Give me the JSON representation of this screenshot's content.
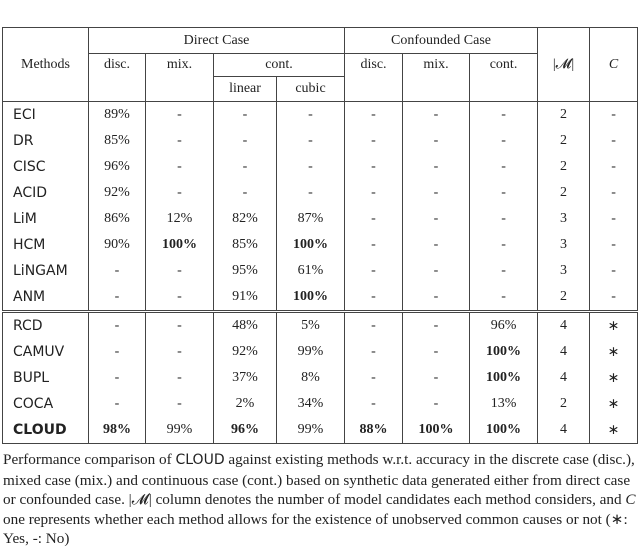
{
  "table": {
    "header": {
      "methods": "Methods",
      "direct_case": "Direct Case",
      "confounded_case": "Confounded Case",
      "m_col": "|𝓜|",
      "c_col": "C",
      "disc": "disc.",
      "mix": "mix.",
      "cont": "cont.",
      "linear": "linear",
      "cubic": "cubic",
      "c_disc": "disc.",
      "c_mix": "mix.",
      "c_cont": "cont."
    },
    "groups": [
      [
        {
          "method": "ECI",
          "values": [
            "89%",
            "-",
            "-",
            "-",
            "-",
            "-",
            "-",
            "2",
            "-"
          ],
          "bold": []
        },
        {
          "method": "DR",
          "values": [
            "85%",
            "-",
            "-",
            "-",
            "-",
            "-",
            "-",
            "2",
            "-"
          ],
          "bold": []
        },
        {
          "method": "CISC",
          "values": [
            "96%",
            "-",
            "-",
            "-",
            "-",
            "-",
            "-",
            "2",
            "-"
          ],
          "bold": []
        },
        {
          "method": "ACID",
          "values": [
            "92%",
            "-",
            "-",
            "-",
            "-",
            "-",
            "-",
            "2",
            "-"
          ],
          "bold": []
        },
        {
          "method": "LiM",
          "values": [
            "86%",
            "12%",
            "82%",
            "87%",
            "-",
            "-",
            "-",
            "3",
            "-"
          ],
          "bold": []
        },
        {
          "method": "HCM",
          "values": [
            "90%",
            "100%",
            "85%",
            "100%",
            "-",
            "-",
            "-",
            "3",
            "-"
          ],
          "bold": [
            1,
            3
          ]
        },
        {
          "method": "LiNGAM",
          "values": [
            "-",
            "-",
            "95%",
            "61%",
            "-",
            "-",
            "-",
            "3",
            "-"
          ],
          "bold": []
        },
        {
          "method": "ANM",
          "values": [
            "-",
            "-",
            "91%",
            "100%",
            "-",
            "-",
            "-",
            "2",
            "-"
          ],
          "bold": [
            3
          ]
        }
      ],
      [
        {
          "method": "RCD",
          "values": [
            "-",
            "-",
            "48%",
            "5%",
            "-",
            "-",
            "96%",
            "4",
            "∗"
          ],
          "bold": []
        },
        {
          "method": "CAMUV",
          "values": [
            "-",
            "-",
            "92%",
            "99%",
            "-",
            "-",
            "100%",
            "4",
            "∗"
          ],
          "bold": [
            6
          ]
        },
        {
          "method": "BUPL",
          "values": [
            "-",
            "-",
            "37%",
            "8%",
            "-",
            "-",
            "100%",
            "4",
            "∗"
          ],
          "bold": [
            6
          ]
        },
        {
          "method": "COCA",
          "values": [
            "-",
            "-",
            "2%",
            "34%",
            "-",
            "-",
            "13%",
            "2",
            "∗"
          ],
          "bold": []
        },
        {
          "method": "CLOUD",
          "values": [
            "98%",
            "99%",
            "96%",
            "99%",
            "88%",
            "100%",
            "100%",
            "4",
            "∗"
          ],
          "bold": [
            0,
            2,
            4,
            5,
            6
          ],
          "method_bold": true
        }
      ]
    ]
  },
  "caption": {
    "t1": "Performance comparison of ",
    "cloud": "CLOUD",
    "t2": " against existing methods w.r.t. accuracy in the discrete case (disc.), mixed case (mix.) and continuous case (cont.) based on synthetic data generated either from direct case or confounded case. ",
    "m": "|𝓜|",
    "t3": " column denotes the number of model candidates each method considers, and ",
    "c": "C",
    "t4": " one represents whether each method allows for the existence of unobserved common causes or not (∗: Yes, -: No)"
  }
}
